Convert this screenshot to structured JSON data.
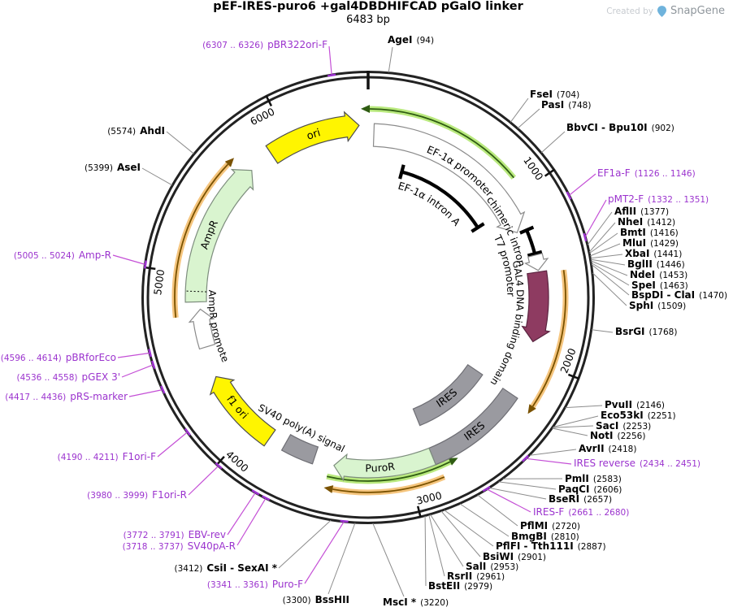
{
  "watermark": {
    "prefix": "Created by",
    "brand": "SnapGene"
  },
  "plasmid": {
    "name": "pEF-IRES-puro6 +gal4DBDHIFCAD pGalO linker",
    "length": "6483 bp"
  },
  "scale_ticks": [
    "1000",
    "2000",
    "3000",
    "4000",
    "5000",
    "6000"
  ],
  "features": [
    {
      "label": "ori",
      "color": "#FFF500"
    },
    {
      "label": "EF-1α promoter",
      "color": "#FFFFFF"
    },
    {
      "label": "EF-1α intron A",
      "color": "#000000"
    },
    {
      "label": "chimeric intron",
      "color": "#000000"
    },
    {
      "label": "T7 promoter",
      "color": "#FFFFFF"
    },
    {
      "label": "GAL4 DNA binding domain",
      "color": "#8E3B61"
    },
    {
      "label": "IRES",
      "color": "#9A9AA0"
    },
    {
      "label": "IRES",
      "color": "#9A9AA0"
    },
    {
      "label": "PuroR",
      "color": "#D9F4CF"
    },
    {
      "label": "SV40 poly(A) signal",
      "color": "#9A9AA0"
    },
    {
      "label": "f1 ori",
      "color": "#FFF500"
    },
    {
      "label": "AmpR promoter",
      "color": "#FFFFFF"
    },
    {
      "label": "AmpR",
      "color": "#D9F4CF"
    }
  ],
  "sites": [
    {
      "name": "AgeI",
      "pos": "(94)"
    },
    {
      "name": "FseI",
      "pos": "(704)"
    },
    {
      "name": "PasI",
      "pos": "(748)"
    },
    {
      "name": "BbvCI - Bpu10I",
      "pos": "(902)"
    },
    {
      "name": "AflII",
      "pos": "(1377)"
    },
    {
      "name": "NheI",
      "pos": "(1412)"
    },
    {
      "name": "BmtI",
      "pos": "(1416)"
    },
    {
      "name": "MluI",
      "pos": "(1429)"
    },
    {
      "name": "XbaI",
      "pos": "(1441)"
    },
    {
      "name": "BglII",
      "pos": "(1446)"
    },
    {
      "name": "NdeI",
      "pos": "(1453)"
    },
    {
      "name": "SpeI",
      "pos": "(1463)"
    },
    {
      "name": "BspDI - ClaI",
      "pos": "(1470)"
    },
    {
      "name": "SphI",
      "pos": "(1509)"
    },
    {
      "name": "BsrGI",
      "pos": "(1768)"
    },
    {
      "name": "PvuII",
      "pos": "(2146)"
    },
    {
      "name": "Eco53kI",
      "pos": "(2251)"
    },
    {
      "name": "SacI",
      "pos": "(2253)"
    },
    {
      "name": "NotI",
      "pos": "(2256)"
    },
    {
      "name": "AvrII",
      "pos": "(2418)"
    },
    {
      "name": "PmlI",
      "pos": "(2583)"
    },
    {
      "name": "PaqCI",
      "pos": "(2606)"
    },
    {
      "name": "BseRI",
      "pos": "(2657)"
    },
    {
      "name": "PflMI",
      "pos": "(2720)"
    },
    {
      "name": "BmgBI",
      "pos": "(2810)"
    },
    {
      "name": "PflFI - Tth111I",
      "pos": "(2887)"
    },
    {
      "name": "BsiWI",
      "pos": "(2901)"
    },
    {
      "name": "SalI",
      "pos": "(2953)"
    },
    {
      "name": "RsrII",
      "pos": "(2961)"
    },
    {
      "name": "BstEII",
      "pos": "(2979)"
    },
    {
      "name": "MscI *",
      "pos": "(3220)"
    },
    {
      "name": "BssHII",
      "pos": "(3300)"
    },
    {
      "name": "CsiI - SexAI *",
      "pos": "(3412)"
    },
    {
      "name": "AseI",
      "pos": "(5399)"
    },
    {
      "name": "AhdI",
      "pos": "(5574)"
    }
  ],
  "primers": [
    {
      "name": "pBR322ori-F",
      "range": "(6307 .. 6326)"
    },
    {
      "name": "EF1a-F",
      "range": "(1126 .. 1146)"
    },
    {
      "name": "pMT2-F",
      "range": "(1332 .. 1351)"
    },
    {
      "name": "IRES reverse",
      "range": "(2434 .. 2451)"
    },
    {
      "name": "IRES-F",
      "range": "(2661 .. 2680)"
    },
    {
      "name": "Puro-F",
      "range": "(3341 .. 3361)"
    },
    {
      "name": "SV40pA-R",
      "range": "(3718 .. 3737)"
    },
    {
      "name": "EBV-rev",
      "range": "(3772 .. 3791)"
    },
    {
      "name": "F1ori-R",
      "range": "(3980 .. 3999)"
    },
    {
      "name": "F1ori-F",
      "range": "(4190 .. 4211)"
    },
    {
      "name": "pRS-marker",
      "range": "(4417 .. 4436)"
    },
    {
      "name": "pGEX 3'",
      "range": "(4536 .. 4558)"
    },
    {
      "name": "pBRforEco",
      "range": "(4596 .. 4614)"
    },
    {
      "name": "Amp-R",
      "range": "(5005 .. 5024)"
    }
  ],
  "colors": {
    "backbone": "#222222",
    "site_label": "#000000",
    "primer": "#9B33CE",
    "site_leader": "#8C8C8C",
    "primer_leader": "#C44FD6",
    "orf_orange_band": "#F5C57E",
    "orf_orange_line": "#7A5200",
    "orf_green_band": "#B9E97E",
    "orf_green_line": "#2F5C12"
  }
}
